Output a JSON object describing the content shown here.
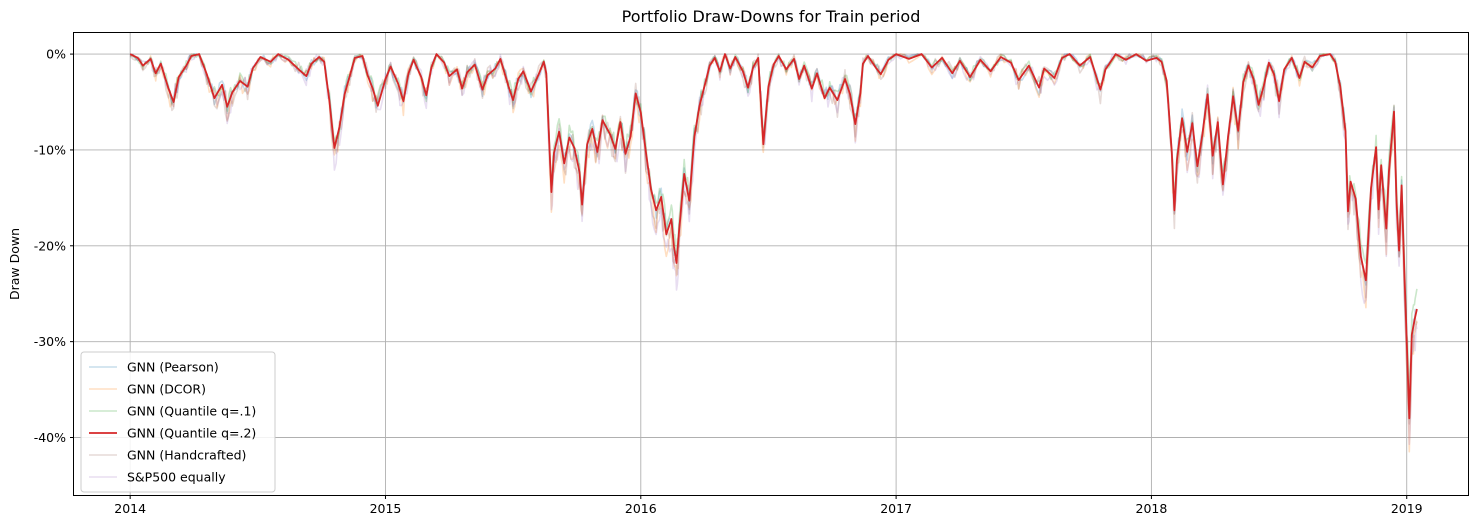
{
  "chart_data": {
    "type": "line",
    "title": "Portfolio Draw-Downs for Train period",
    "ylabel": "Draw Down",
    "xlabel": "",
    "xlim": [
      2013.78,
      2019.24
    ],
    "ylim": [
      -46,
      2.2
    ],
    "x_ticks": [
      2014,
      2015,
      2016,
      2017,
      2018,
      2019
    ],
    "x_tick_labels": [
      "2014",
      "2015",
      "2016",
      "2017",
      "2018",
      "2019"
    ],
    "y_ticks": [
      0,
      -10,
      -20,
      -30,
      -40
    ],
    "y_tick_labels": [
      "0%",
      "-10%",
      "-20%",
      "-30%",
      "-40%"
    ],
    "grid": true,
    "legend_position": "lower-left",
    "series": [
      {
        "name": "GNN (Pearson)",
        "color": "#1f77b4",
        "opacity": 0.25,
        "width": 1.6,
        "base_series": "GNN (Quantile q=.2)",
        "noise_seed": 11,
        "scale": 1.0,
        "noise_amp": 1.0
      },
      {
        "name": "GNN (DCOR)",
        "color": "#ff7f0e",
        "opacity": 0.25,
        "width": 1.6,
        "base_series": "GNN (Quantile q=.2)",
        "noise_seed": 23,
        "scale": 1.08,
        "noise_amp": 1.3
      },
      {
        "name": "GNN (Quantile q=.1)",
        "color": "#2ca02c",
        "opacity": 0.25,
        "width": 1.6,
        "base_series": "GNN (Quantile q=.2)",
        "noise_seed": 37,
        "scale": 0.95,
        "noise_amp": 1.0
      },
      {
        "name": "GNN (Quantile q=.2)",
        "color": "#d62728",
        "opacity": 1.0,
        "width": 1.8,
        "points": [
          [
            2014.0,
            0.0
          ],
          [
            2014.03,
            -0.4
          ],
          [
            2014.05,
            -1.2
          ],
          [
            2014.08,
            -0.5
          ],
          [
            2014.1,
            -2.0
          ],
          [
            2014.12,
            -1.0
          ],
          [
            2014.15,
            -3.6
          ],
          [
            2014.17,
            -5.0
          ],
          [
            2014.19,
            -2.4
          ],
          [
            2014.22,
            -1.2
          ],
          [
            2014.24,
            -0.2
          ],
          [
            2014.27,
            0.0
          ],
          [
            2014.3,
            -2.1
          ],
          [
            2014.33,
            -4.6
          ],
          [
            2014.36,
            -3.2
          ],
          [
            2014.38,
            -5.5
          ],
          [
            2014.4,
            -4.0
          ],
          [
            2014.43,
            -2.8
          ],
          [
            2014.46,
            -3.4
          ],
          [
            2014.48,
            -1.5
          ],
          [
            2014.51,
            -0.3
          ],
          [
            2014.55,
            -0.8
          ],
          [
            2014.58,
            0.0
          ],
          [
            2014.62,
            -0.6
          ],
          [
            2014.66,
            -1.6
          ],
          [
            2014.69,
            -2.3
          ],
          [
            2014.71,
            -1.0
          ],
          [
            2014.74,
            -0.3
          ],
          [
            2014.76,
            -0.8
          ],
          [
            2014.78,
            -4.8
          ],
          [
            2014.8,
            -9.8
          ],
          [
            2014.82,
            -7.6
          ],
          [
            2014.84,
            -4.2
          ],
          [
            2014.86,
            -2.3
          ],
          [
            2014.88,
            -0.4
          ],
          [
            2014.91,
            -0.2
          ],
          [
            2014.93,
            -2.2
          ],
          [
            2014.95,
            -3.6
          ],
          [
            2014.97,
            -5.4
          ],
          [
            2015.0,
            -2.6
          ],
          [
            2015.02,
            -1.3
          ],
          [
            2015.05,
            -3.1
          ],
          [
            2015.07,
            -4.9
          ],
          [
            2015.09,
            -2.0
          ],
          [
            2015.11,
            -0.6
          ],
          [
            2015.14,
            -2.4
          ],
          [
            2015.16,
            -4.3
          ],
          [
            2015.18,
            -1.4
          ],
          [
            2015.2,
            0.0
          ],
          [
            2015.23,
            -0.9
          ],
          [
            2015.25,
            -2.3
          ],
          [
            2015.28,
            -1.6
          ],
          [
            2015.3,
            -3.6
          ],
          [
            2015.32,
            -1.9
          ],
          [
            2015.35,
            -1.1
          ],
          [
            2015.38,
            -3.7
          ],
          [
            2015.4,
            -2.2
          ],
          [
            2015.43,
            -1.5
          ],
          [
            2015.45,
            -0.5
          ],
          [
            2015.48,
            -3.2
          ],
          [
            2015.5,
            -4.8
          ],
          [
            2015.52,
            -2.6
          ],
          [
            2015.54,
            -1.8
          ],
          [
            2015.57,
            -3.9
          ],
          [
            2015.6,
            -2.1
          ],
          [
            2015.62,
            -0.8
          ],
          [
            2015.63,
            -2.0
          ],
          [
            2015.64,
            -8.4
          ],
          [
            2015.65,
            -14.4
          ],
          [
            2015.66,
            -10.3
          ],
          [
            2015.68,
            -8.1
          ],
          [
            2015.7,
            -11.4
          ],
          [
            2015.72,
            -8.7
          ],
          [
            2015.74,
            -9.8
          ],
          [
            2015.76,
            -12.3
          ],
          [
            2015.77,
            -15.7
          ],
          [
            2015.79,
            -9.4
          ],
          [
            2015.81,
            -7.8
          ],
          [
            2015.83,
            -10.2
          ],
          [
            2015.85,
            -6.9
          ],
          [
            2015.88,
            -8.4
          ],
          [
            2015.9,
            -9.9
          ],
          [
            2015.92,
            -7.1
          ],
          [
            2015.94,
            -10.4
          ],
          [
            2015.96,
            -8.6
          ],
          [
            2015.98,
            -4.1
          ],
          [
            2016.0,
            -6.1
          ],
          [
            2016.02,
            -10.2
          ],
          [
            2016.04,
            -14.1
          ],
          [
            2016.06,
            -16.3
          ],
          [
            2016.08,
            -14.9
          ],
          [
            2016.1,
            -18.8
          ],
          [
            2016.12,
            -17.2
          ],
          [
            2016.13,
            -20.1
          ],
          [
            2016.14,
            -21.8
          ],
          [
            2016.15,
            -18.4
          ],
          [
            2016.17,
            -12.5
          ],
          [
            2016.19,
            -15.3
          ],
          [
            2016.21,
            -8.6
          ],
          [
            2016.23,
            -5.4
          ],
          [
            2016.25,
            -3.3
          ],
          [
            2016.27,
            -1.2
          ],
          [
            2016.29,
            -0.4
          ],
          [
            2016.31,
            -1.8
          ],
          [
            2016.33,
            0.0
          ],
          [
            2016.35,
            -1.5
          ],
          [
            2016.37,
            -0.3
          ],
          [
            2016.4,
            -1.8
          ],
          [
            2016.42,
            -3.5
          ],
          [
            2016.44,
            -1.4
          ],
          [
            2016.46,
            -0.4
          ],
          [
            2016.47,
            -4.9
          ],
          [
            2016.48,
            -9.4
          ],
          [
            2016.5,
            -3.4
          ],
          [
            2016.52,
            -1.1
          ],
          [
            2016.54,
            -0.2
          ],
          [
            2016.57,
            -1.6
          ],
          [
            2016.6,
            -0.5
          ],
          [
            2016.62,
            -2.6
          ],
          [
            2016.64,
            -1.2
          ],
          [
            2016.67,
            -3.6
          ],
          [
            2016.69,
            -2.0
          ],
          [
            2016.72,
            -4.6
          ],
          [
            2016.74,
            -3.5
          ],
          [
            2016.77,
            -4.8
          ],
          [
            2016.8,
            -2.6
          ],
          [
            2016.82,
            -4.2
          ],
          [
            2016.84,
            -7.3
          ],
          [
            2016.86,
            -4.1
          ],
          [
            2016.87,
            -1.0
          ],
          [
            2016.89,
            -0.2
          ],
          [
            2016.92,
            -1.4
          ],
          [
            2016.94,
            -2.1
          ],
          [
            2016.97,
            -0.6
          ],
          [
            2017.0,
            0.0
          ],
          [
            2017.05,
            -0.5
          ],
          [
            2017.1,
            0.0
          ],
          [
            2017.14,
            -1.4
          ],
          [
            2017.18,
            -0.4
          ],
          [
            2017.22,
            -2.0
          ],
          [
            2017.25,
            -0.7
          ],
          [
            2017.29,
            -2.4
          ],
          [
            2017.33,
            -0.6
          ],
          [
            2017.37,
            -1.8
          ],
          [
            2017.41,
            -0.3
          ],
          [
            2017.45,
            -0.9
          ],
          [
            2017.48,
            -2.7
          ],
          [
            2017.52,
            -1.2
          ],
          [
            2017.56,
            -3.5
          ],
          [
            2017.58,
            -1.5
          ],
          [
            2017.62,
            -2.5
          ],
          [
            2017.65,
            -0.4
          ],
          [
            2017.68,
            0.0
          ],
          [
            2017.72,
            -1.2
          ],
          [
            2017.76,
            -0.3
          ],
          [
            2017.8,
            -3.7
          ],
          [
            2017.82,
            -1.6
          ],
          [
            2017.86,
            0.0
          ],
          [
            2017.9,
            -0.6
          ],
          [
            2017.94,
            0.0
          ],
          [
            2017.98,
            -0.7
          ],
          [
            2018.02,
            -0.4
          ],
          [
            2018.04,
            -0.8
          ],
          [
            2018.06,
            -2.8
          ],
          [
            2018.08,
            -10.2
          ],
          [
            2018.09,
            -16.3
          ],
          [
            2018.1,
            -11.1
          ],
          [
            2018.12,
            -6.7
          ],
          [
            2018.14,
            -10.2
          ],
          [
            2018.16,
            -7.2
          ],
          [
            2018.18,
            -11.7
          ],
          [
            2018.2,
            -8.3
          ],
          [
            2018.22,
            -4.2
          ],
          [
            2018.24,
            -10.6
          ],
          [
            2018.26,
            -7.1
          ],
          [
            2018.28,
            -13.6
          ],
          [
            2018.3,
            -8.7
          ],
          [
            2018.32,
            -4.4
          ],
          [
            2018.34,
            -8.0
          ],
          [
            2018.36,
            -2.9
          ],
          [
            2018.38,
            -1.2
          ],
          [
            2018.4,
            -2.6
          ],
          [
            2018.42,
            -5.3
          ],
          [
            2018.44,
            -3.3
          ],
          [
            2018.46,
            -0.9
          ],
          [
            2018.48,
            -2.1
          ],
          [
            2018.5,
            -4.9
          ],
          [
            2018.52,
            -1.6
          ],
          [
            2018.55,
            -0.4
          ],
          [
            2018.58,
            -2.5
          ],
          [
            2018.6,
            -0.8
          ],
          [
            2018.63,
            -1.4
          ],
          [
            2018.66,
            -0.2
          ],
          [
            2018.7,
            0.0
          ],
          [
            2018.72,
            -0.8
          ],
          [
            2018.74,
            -3.4
          ],
          [
            2018.76,
            -8.1
          ],
          [
            2018.77,
            -16.4
          ],
          [
            2018.78,
            -13.3
          ],
          [
            2018.8,
            -15.1
          ],
          [
            2018.82,
            -21.1
          ],
          [
            2018.84,
            -23.6
          ],
          [
            2018.86,
            -14.0
          ],
          [
            2018.88,
            -9.7
          ],
          [
            2018.89,
            -16.2
          ],
          [
            2018.9,
            -11.6
          ],
          [
            2018.92,
            -18.2
          ],
          [
            2018.93,
            -12.3
          ],
          [
            2018.95,
            -6.0
          ],
          [
            2018.96,
            -15.3
          ],
          [
            2018.97,
            -20.5
          ],
          [
            2018.98,
            -13.7
          ],
          [
            2018.99,
            -22.2
          ],
          [
            2019.0,
            -29.8
          ],
          [
            2019.01,
            -38.0
          ],
          [
            2019.02,
            -29.3
          ],
          [
            2019.03,
            -27.8
          ],
          [
            2019.04,
            -26.6
          ]
        ]
      },
      {
        "name": "GNN (Handcrafted)",
        "color": "#8c564b",
        "opacity": 0.22,
        "width": 1.6,
        "base_series": "GNN (Quantile q=.2)",
        "noise_seed": 53,
        "scale": 1.05,
        "noise_amp": 1.6
      },
      {
        "name": "S&P500 equally",
        "color": "#9467bd",
        "opacity": 0.22,
        "width": 1.6,
        "base_series": "GNN (Quantile q=.2)",
        "noise_seed": 71,
        "scale": 1.1,
        "noise_amp": 1.5
      }
    ]
  }
}
